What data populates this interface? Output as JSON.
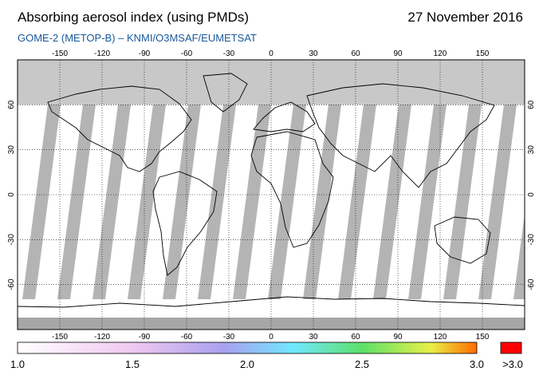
{
  "header": {
    "title": "Absorbing aerosol index (using PMDs)",
    "date": "27 November 2016",
    "subtitle": "GOME-2 (METOP-B)  –  KNMI/O3MSAF/EUMETSAT"
  },
  "map": {
    "projection": "equirectangular",
    "lon_ticks": [
      "-150",
      "-120",
      "-90",
      "-60",
      "-30",
      "0",
      "30",
      "60",
      "90",
      "120",
      "150"
    ],
    "lon_values": [
      -150,
      -120,
      -90,
      -60,
      -30,
      0,
      30,
      60,
      90,
      120,
      150
    ],
    "lat_ticks": [
      "60",
      "30",
      "0",
      "-30",
      "-60"
    ],
    "lat_values": [
      60,
      30,
      0,
      -30,
      -60
    ],
    "no_data_color": "#c8c8c8",
    "polar_color": "#a0a0a0",
    "swath_gap_color": "#b4b4b4",
    "coastline_color": "#000000",
    "grid_style": "dotted"
  },
  "colorbar": {
    "labels": [
      "1.0",
      "1.5",
      "2.0",
      "2.5",
      "3.0"
    ],
    "values": [
      1.0,
      1.5,
      2.0,
      2.5,
      3.0
    ],
    "over_label": ">3.0",
    "over_color": "#ff0000",
    "colors": [
      "#ffffff",
      "#f6d8f2",
      "#b09cf0",
      "#6fe8ff",
      "#5ce06a",
      "#e8f046",
      "#ff6a00"
    ]
  }
}
